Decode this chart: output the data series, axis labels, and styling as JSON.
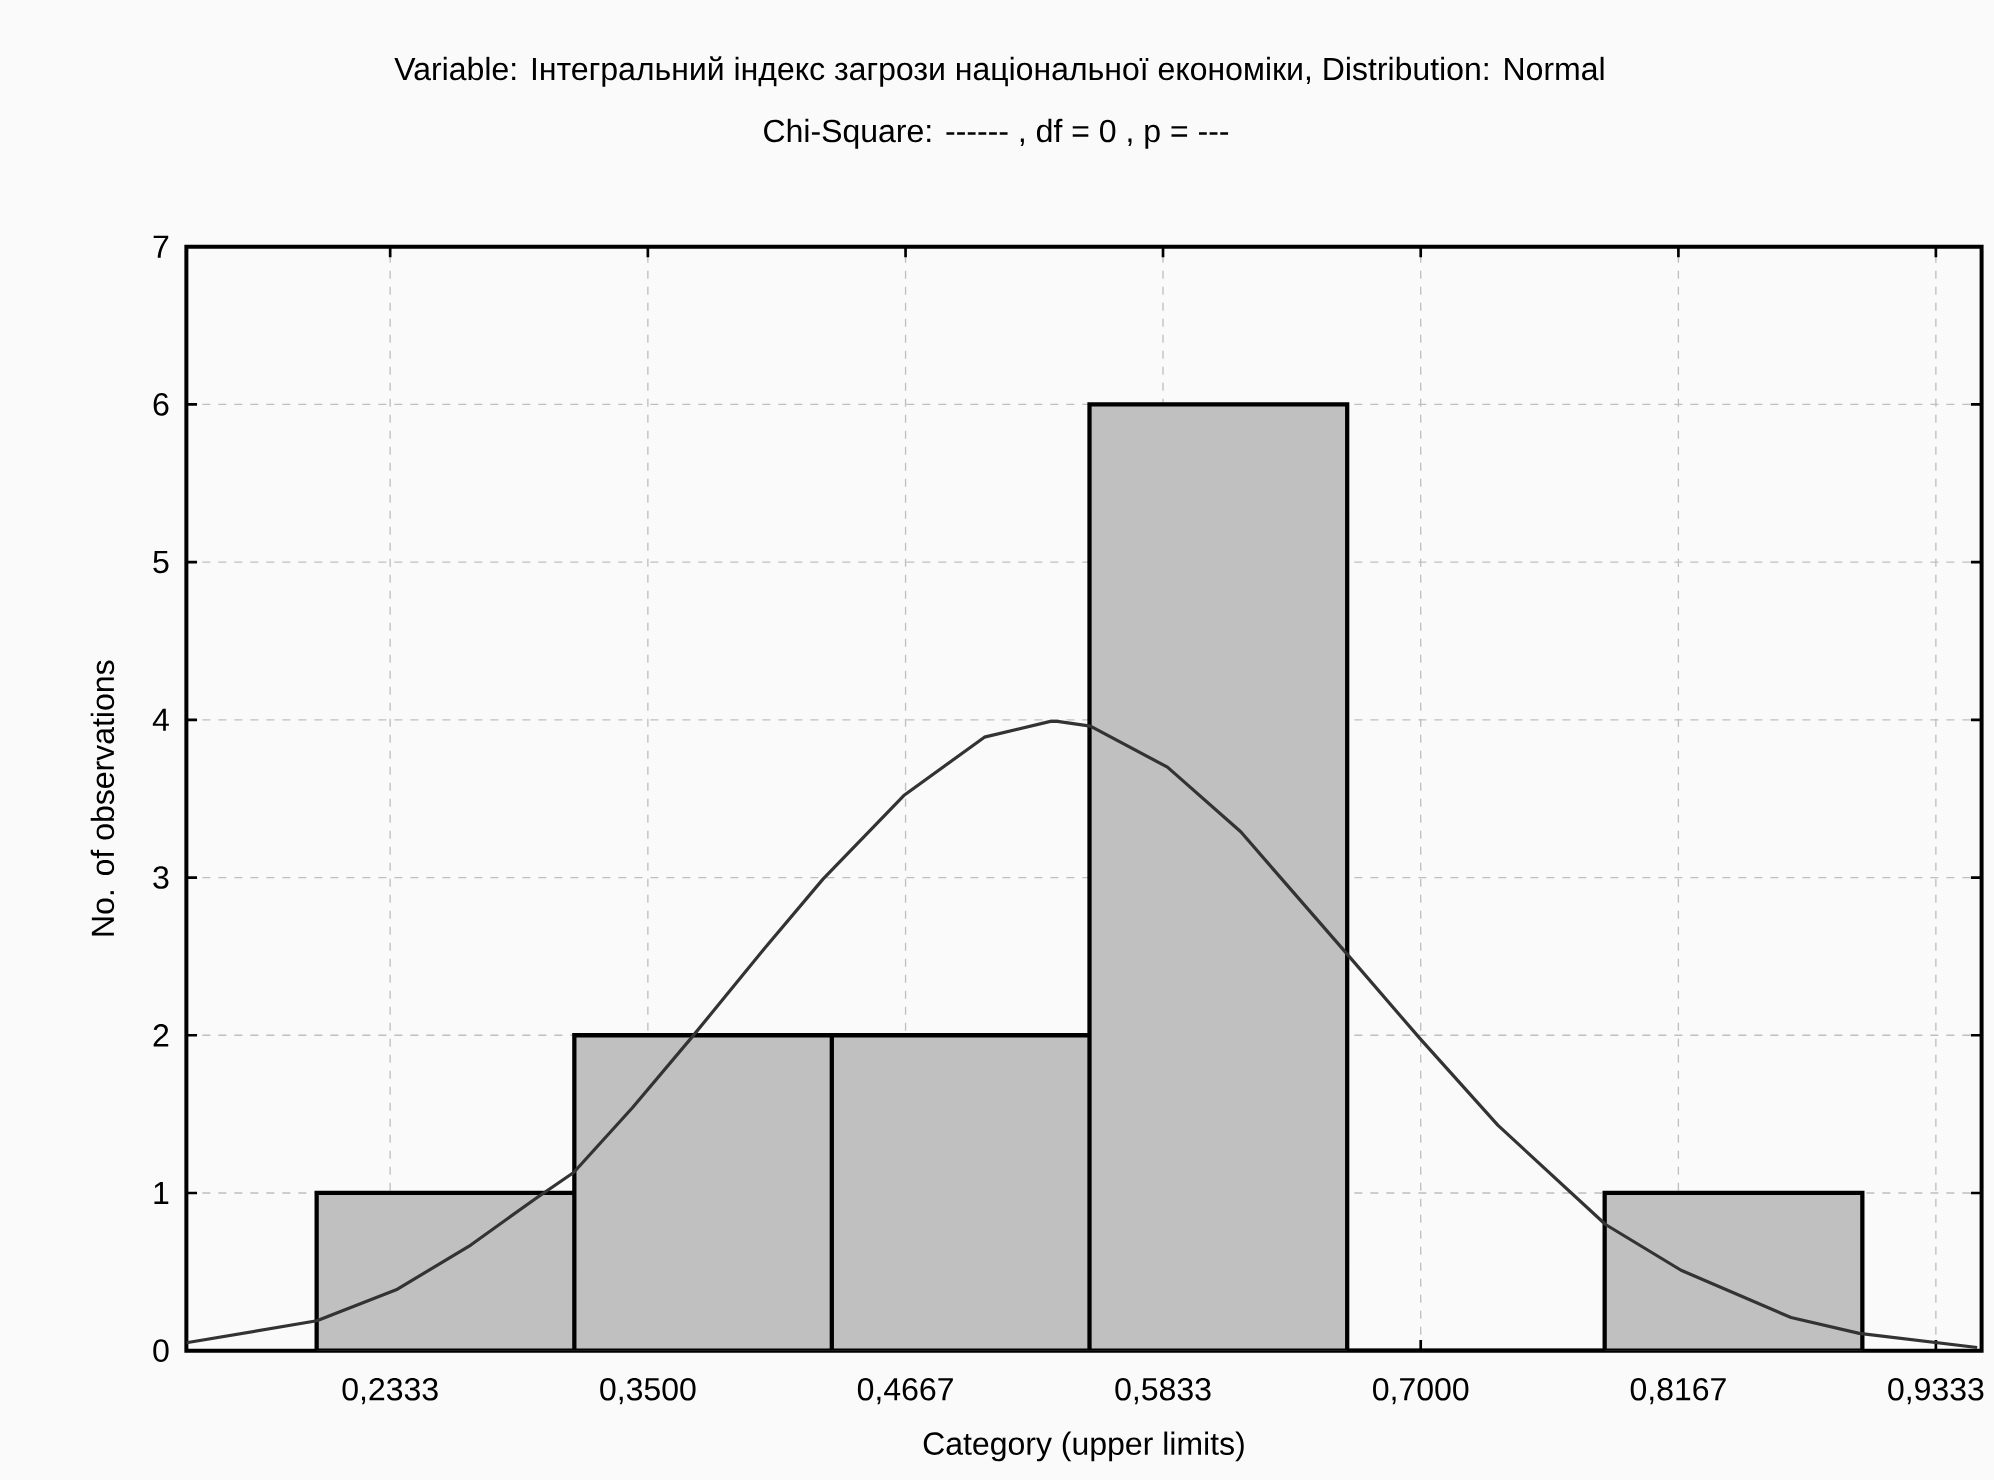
{
  "chart_data": {
    "type": "histogram",
    "title": "Variable: Інтегральний індекс загрози національної економіки, Distribution: Normal",
    "subtitle": "Chi-Square:  ------ , df =  0 , p = ---",
    "xlabel": "Category (upper limits)",
    "ylabel": "No. of observations",
    "bins": [
      0.2,
      0.3167,
      0.4333,
      0.55,
      0.6667,
      0.7833,
      0.9
    ],
    "values": [
      1,
      2,
      2,
      6,
      0,
      1
    ],
    "color": "#c0c0c0",
    "series": [
      {
        "type": "line",
        "color": "#333333",
        "x": [
          0.141,
          0.2001,
          0.2366,
          0.2698,
          0.2997,
          0.3164,
          0.343,
          0.3695,
          0.4028,
          0.4293,
          0.4659,
          0.5024,
          0.5323,
          0.5355,
          0.5504,
          0.5853,
          0.6185,
          0.6657,
          0.6996,
          0.7349,
          0.7837,
          0.8179,
          0.8677,
          0.8986,
          0.952
        ],
        "values": [
          0.05,
          0.19,
          0.39,
          0.67,
          0.97,
          1.13,
          1.54,
          1.98,
          2.55,
          2.99,
          3.52,
          3.89,
          3.99,
          3.99,
          3.96,
          3.7,
          3.29,
          2.53,
          1.98,
          1.43,
          0.8,
          0.51,
          0.21,
          0.11,
          0.02
        ]
      }
    ],
    "xlim": [
      0.141,
      0.954
    ],
    "ylim": [
      0,
      7
    ],
    "xticks": [
      {
        "value": 0.2333,
        "label": "0,2333"
      },
      {
        "value": 0.35,
        "label": "0,3500"
      },
      {
        "value": 0.4667,
        "label": "0,4667"
      },
      {
        "value": 0.5833,
        "label": "0,5833"
      },
      {
        "value": 0.7,
        "label": "0,7000"
      },
      {
        "value": 0.8167,
        "label": "0,8167"
      },
      {
        "value": 0.9333,
        "label": "0,9333"
      }
    ],
    "yticks": [
      0,
      1,
      2,
      3,
      4,
      5,
      6,
      7
    ],
    "grid": true
  }
}
